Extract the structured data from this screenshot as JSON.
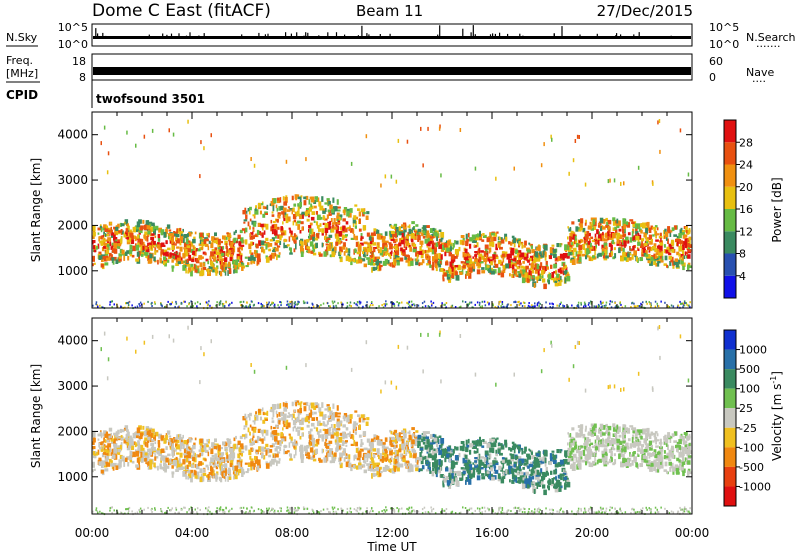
{
  "header": {
    "station": "Dome C East (fitACF)",
    "beam": "Beam 11",
    "date": "27/Dec/2015"
  },
  "top_panels": {
    "nsky_label": "N.Sky",
    "nsearch_label": "N.Search",
    "nsky_ticks": [
      "10^5",
      "10^0"
    ],
    "nsearch_ticks": [
      "10^5",
      "10^0"
    ],
    "freq_label_line1": "Freq.",
    "freq_label_line2": "[MHz]",
    "freq_ticks": [
      "18",
      "8"
    ],
    "nave_label": "Nave",
    "nave_ticks": [
      "60",
      "0"
    ],
    "cpid_label": "CPID",
    "cpid_value": "twofsound 3501"
  },
  "chart_data": [
    {
      "type": "heatmap",
      "quantity": "Power",
      "ylabel": "Slant Range [km]",
      "xlabel": "",
      "ylim": [
        180,
        4500
      ],
      "yticks": [
        1000,
        2000,
        3000,
        4000
      ],
      "xlim_hours": [
        0,
        24
      ],
      "colorbar_label": "Power [dB]",
      "colorbar_ticks": [
        "4",
        "8",
        "12",
        "16",
        "20",
        "24",
        "28"
      ],
      "colorbar_colors": [
        "#1010e8",
        "#2850b0",
        "#3a8a60",
        "#66bb44",
        "#e8c010",
        "#f09010",
        "#e85010",
        "#e01010"
      ],
      "band_low_range_km": [
        1000,
        2200
      ],
      "band_high_range_km": [
        1600,
        2800
      ]
    },
    {
      "type": "heatmap",
      "quantity": "Velocity",
      "ylabel": "Slant Range [km]",
      "xlabel": "Time UT",
      "ylim": [
        180,
        4500
      ],
      "yticks": [
        1000,
        2000,
        3000,
        4000
      ],
      "xlim_hours": [
        0,
        24
      ],
      "colorbar_label": "Velocity [m s",
      "colorbar_label_sup": "-1",
      "colorbar_label_end": "]",
      "colorbar_ticks": [
        "1000",
        "500",
        "100",
        "25",
        "-25",
        "-100",
        "-500",
        "-1000"
      ],
      "colorbar_colors": [
        "#1030d0",
        "#2870a8",
        "#3a8a60",
        "#70c050",
        "#c8c8c0",
        "#f0c020",
        "#f08810",
        "#e84010",
        "#e01010"
      ]
    }
  ],
  "time_axis": {
    "ticks": [
      "00:00",
      "04:00",
      "08:00",
      "12:00",
      "16:00",
      "20:00",
      "00:00"
    ]
  }
}
